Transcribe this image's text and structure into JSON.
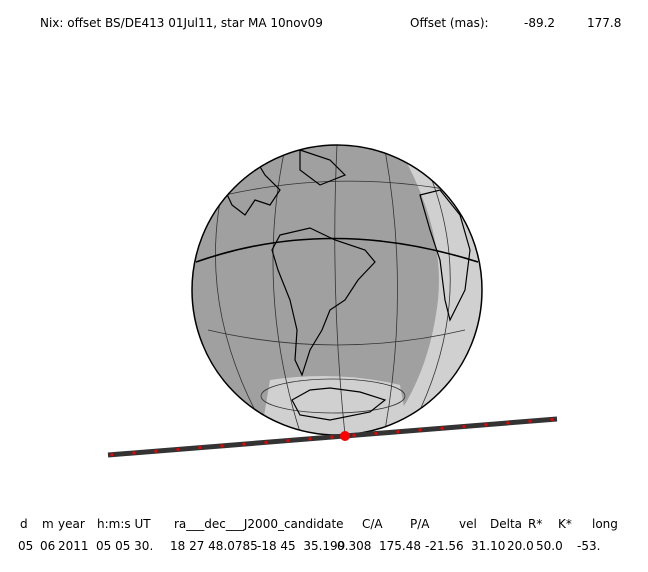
{
  "header": {
    "title": "Nix: offset BS/DE413 01Jul11, star MA 10nov09",
    "offset_label": "Offset (mas):",
    "offset_values": [
      "-89.2",
      "177.8"
    ]
  },
  "table": {
    "headers": [
      "d",
      "m",
      "year",
      "h:m:s UT",
      "ra___dec___J2000_candidate",
      "C/A",
      "P/A",
      "vel",
      "Delta",
      "R*",
      "K*",
      "long"
    ],
    "rows": [
      [
        "05",
        "06",
        "2011",
        "05 05 30.",
        "18 27 48.0785",
        "-18 45  35.199",
        "0.308",
        "175.48",
        "-21.56",
        "31.10",
        "20.0",
        "50.0",
        "-53."
      ]
    ]
  }
}
